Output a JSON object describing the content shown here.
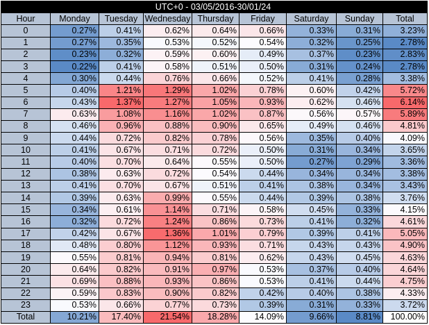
{
  "title": "UTC+0 - 03/05/2016-30/01/24",
  "header": [
    "Hour",
    "Monday",
    "Tuesday",
    "Wednesday",
    "Thursday",
    "Friday",
    "Saturday",
    "Sunday",
    "Total"
  ],
  "rows": [
    [
      "0",
      "0.27%",
      "0.41%",
      "0.62%",
      "0.64%",
      "0.66%",
      "0.33%",
      "0.31%",
      "3.23%"
    ],
    [
      "1",
      "0.27%",
      "0.35%",
      "0.53%",
      "0.52%",
      "0.54%",
      "0.32%",
      "0.25%",
      "2.78%"
    ],
    [
      "2",
      "0.23%",
      "0.32%",
      "0.59%",
      "0.60%",
      "0.49%",
      "0.37%",
      "0.23%",
      "2.83%"
    ],
    [
      "3",
      "0.22%",
      "0.41%",
      "0.58%",
      "0.51%",
      "0.50%",
      "0.31%",
      "0.24%",
      "2.78%"
    ],
    [
      "4",
      "0.30%",
      "0.44%",
      "0.76%",
      "0.66%",
      "0.52%",
      "0.41%",
      "0.28%",
      "3.38%"
    ],
    [
      "5",
      "0.40%",
      "1.21%",
      "1.29%",
      "1.02%",
      "0.78%",
      "0.60%",
      "0.42%",
      "5.72%"
    ],
    [
      "6",
      "0.43%",
      "1.37%",
      "1.27%",
      "1.05%",
      "0.93%",
      "0.62%",
      "0.46%",
      "6.14%"
    ],
    [
      "7",
      "0.63%",
      "1.08%",
      "1.16%",
      "1.02%",
      "0.87%",
      "0.56%",
      "0.57%",
      "5.89%"
    ],
    [
      "8",
      "0.46%",
      "0.96%",
      "0.88%",
      "0.90%",
      "0.65%",
      "0.49%",
      "0.46%",
      "4.81%"
    ],
    [
      "9",
      "0.44%",
      "0.72%",
      "0.82%",
      "0.78%",
      "0.56%",
      "0.35%",
      "0.40%",
      "4.09%"
    ],
    [
      "10",
      "0.41%",
      "0.67%",
      "0.71%",
      "0.72%",
      "0.50%",
      "0.31%",
      "0.34%",
      "3.65%"
    ],
    [
      "11",
      "0.40%",
      "0.70%",
      "0.64%",
      "0.55%",
      "0.50%",
      "0.27%",
      "0.29%",
      "3.36%"
    ],
    [
      "12",
      "0.38%",
      "0.63%",
      "0.72%",
      "0.54%",
      "0.44%",
      "0.34%",
      "0.34%",
      "3.38%"
    ],
    [
      "13",
      "0.41%",
      "0.70%",
      "0.67%",
      "0.51%",
      "0.41%",
      "0.38%",
      "0.34%",
      "3.43%"
    ],
    [
      "14",
      "0.39%",
      "0.63%",
      "0.99%",
      "0.55%",
      "0.44%",
      "0.39%",
      "0.38%",
      "3.76%"
    ],
    [
      "15",
      "0.34%",
      "0.61%",
      "1.14%",
      "0.71%",
      "0.58%",
      "0.45%",
      "0.33%",
      "4.15%"
    ],
    [
      "16",
      "0.32%",
      "0.72%",
      "1.24%",
      "0.86%",
      "0.73%",
      "0.41%",
      "0.32%",
      "4.61%"
    ],
    [
      "17",
      "0.42%",
      "0.67%",
      "1.36%",
      "1.01%",
      "0.79%",
      "0.39%",
      "0.41%",
      "5.05%"
    ],
    [
      "18",
      "0.48%",
      "0.80%",
      "1.12%",
      "0.93%",
      "0.71%",
      "0.43%",
      "0.43%",
      "4.90%"
    ],
    [
      "19",
      "0.55%",
      "0.81%",
      "0.94%",
      "0.81%",
      "0.62%",
      "0.43%",
      "0.45%",
      "4.63%"
    ],
    [
      "20",
      "0.64%",
      "0.82%",
      "0.91%",
      "0.97%",
      "0.53%",
      "0.37%",
      "0.40%",
      "4.64%"
    ],
    [
      "21",
      "0.69%",
      "0.88%",
      "0.93%",
      "0.86%",
      "0.53%",
      "0.41%",
      "0.44%",
      "4.75%"
    ],
    [
      "22",
      "0.59%",
      "0.83%",
      "0.90%",
      "0.82%",
      "0.42%",
      "0.40%",
      "0.38%",
      "4.33%"
    ],
    [
      "23",
      "0.53%",
      "0.66%",
      "0.77%",
      "0.73%",
      "0.39%",
      "0.31%",
      "0.33%",
      "3.72%"
    ]
  ],
  "total_row": [
    "Total",
    "10.21%",
    "17.40%",
    "21.54%",
    "18.28%",
    "14.09%",
    "9.66%",
    "8.81%",
    "100.00%"
  ]
}
